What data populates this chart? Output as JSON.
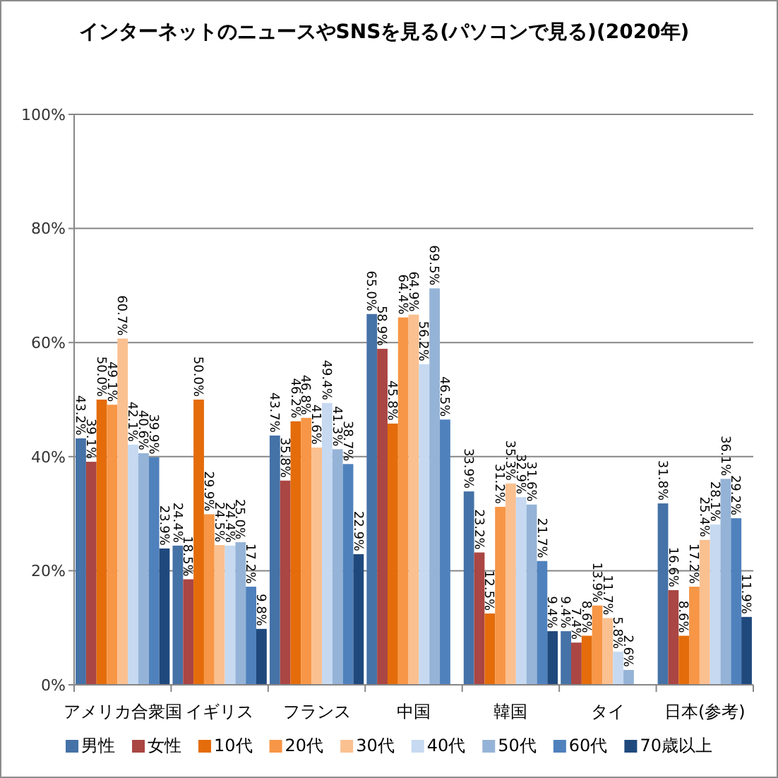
{
  "chart_data": {
    "type": "bar",
    "title": "インターネットのニュースやSNSを見る(パソコンで見る)(2020年)",
    "categories": [
      "アメリカ合衆国",
      "イギリス",
      "フランス",
      "中国",
      "韓国",
      "タイ",
      "日本(参考)"
    ],
    "series": [
      {
        "name": "男性",
        "color": "#4572a7",
        "values": [
          43.2,
          24.4,
          43.7,
          65.0,
          33.9,
          9.4,
          31.8
        ],
        "value_labels": [
          "43.2%",
          "24.4%",
          "43.7%",
          "65.0%",
          "33.9%",
          "9.4%",
          "31.8%"
        ]
      },
      {
        "name": "女性",
        "color": "#aa4643",
        "values": [
          39.1,
          18.5,
          35.8,
          58.9,
          23.2,
          7.4,
          16.6
        ],
        "value_labels": [
          "39.1%",
          "18.5%",
          "35.8%",
          "58.9%",
          "23.2%",
          "7.4%",
          "16.6%"
        ]
      },
      {
        "name": "10代",
        "color": "#e46c0a",
        "values": [
          50.0,
          50.0,
          46.2,
          45.8,
          12.5,
          8.6,
          8.6
        ],
        "value_labels": [
          "50.0%",
          "50.0%",
          "46.2%",
          "45.8%",
          "12.5%",
          "8.6%",
          "8.6%"
        ]
      },
      {
        "name": "20代",
        "color": "#f79646",
        "values": [
          49.1,
          29.9,
          46.8,
          64.4,
          31.2,
          13.9,
          17.2
        ],
        "value_labels": [
          "49.1%",
          "29.9%",
          "46.8%",
          "64.4%",
          "31.2%",
          "13.9%",
          "17.2%"
        ]
      },
      {
        "name": "30代",
        "color": "#fac090",
        "values": [
          60.7,
          24.5,
          41.6,
          64.9,
          35.3,
          11.7,
          25.4
        ],
        "value_labels": [
          "60.7%",
          "24.5%",
          "41.6%",
          "64.9%",
          "35.3%",
          "11.7%",
          "25.4%"
        ]
      },
      {
        "name": "40代",
        "color": "#c6d9f1",
        "values": [
          42.1,
          24.4,
          49.4,
          56.2,
          32.9,
          5.8,
          28.1
        ],
        "value_labels": [
          "42.1%",
          "24.4%",
          "49.4%",
          "56.2%",
          "32.9%",
          "5.8%",
          "28.1%"
        ]
      },
      {
        "name": "50代",
        "color": "#95b3d7",
        "values": [
          40.6,
          25.0,
          41.3,
          69.5,
          31.6,
          2.6,
          36.1
        ],
        "value_labels": [
          "40.6%",
          "25.0%",
          "41.3%",
          "69.5%",
          "31.6%",
          "2.6%",
          "36.1%"
        ]
      },
      {
        "name": "60代",
        "color": "#4f81bd",
        "values": [
          39.9,
          17.2,
          38.7,
          46.5,
          21.7,
          null,
          29.2
        ],
        "value_labels": [
          "39.9%",
          "17.2%",
          "38.7%",
          "46.5%",
          "21.7%",
          null,
          "29.2%"
        ]
      },
      {
        "name": "70歳以上",
        "color": "#1f497d",
        "values": [
          23.9,
          9.8,
          22.9,
          null,
          9.4,
          null,
          11.9
        ],
        "value_labels": [
          "23.9%",
          "9.8%",
          "22.9%",
          null,
          "9.4%",
          null,
          "11.9%"
        ]
      }
    ],
    "ylim": [
      0,
      100
    ],
    "yticks": [
      {
        "value": 0,
        "label": "0%"
      },
      {
        "value": 20,
        "label": "20%"
      },
      {
        "value": 40,
        "label": "40%"
      },
      {
        "value": 60,
        "label": "60%"
      },
      {
        "value": 80,
        "label": "80%"
      },
      {
        "value": 100,
        "label": "100%"
      }
    ],
    "grid": "y",
    "legend": "bottom"
  }
}
